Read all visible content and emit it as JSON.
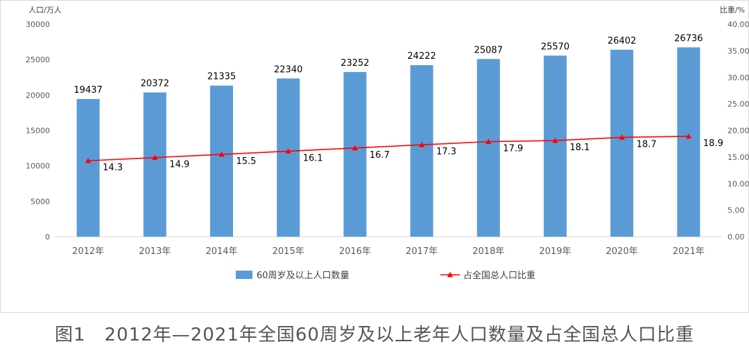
{
  "caption": "图1　2012年—2021年全国60周岁及以上老年人口数量及占全国总人口比重",
  "colors": {
    "bar": "#5b9bd5",
    "line": "#ff0000",
    "axis_text": "#595959",
    "baseline": "#d9d9d9"
  },
  "chart_data": {
    "type": "bar",
    "categories": [
      "2012年",
      "2013年",
      "2014年",
      "2015年",
      "2016年",
      "2017年",
      "2018年",
      "2019年",
      "2020年",
      "2021年"
    ],
    "series": [
      {
        "name": "60周岁及以上人口数量",
        "type": "bar",
        "axis": "left",
        "values": [
          19437,
          20372,
          21335,
          22340,
          23252,
          24222,
          25087,
          25570,
          26402,
          26736
        ],
        "labels": [
          "19437",
          "20372",
          "21335",
          "22340",
          "23252",
          "24222",
          "25087",
          "25570",
          "26402",
          "26736"
        ]
      },
      {
        "name": "占全国总人口比重",
        "type": "line",
        "marker": "triangle",
        "axis": "right",
        "values": [
          14.3,
          14.9,
          15.5,
          16.1,
          16.7,
          17.3,
          17.9,
          18.1,
          18.7,
          18.9
        ],
        "labels": [
          "14.3",
          "14.9",
          "15.5",
          "16.1",
          "16.7",
          "17.3",
          "17.9",
          "18.1",
          "18.7",
          "18.9"
        ]
      }
    ],
    "ylabel_left": "人口/万人",
    "ylabel_right": "比重/%",
    "ylim_left": [
      0,
      30000
    ],
    "ylim_right": [
      0,
      40
    ],
    "yticks_left": [
      "0",
      "5000",
      "10000",
      "15000",
      "20000",
      "25000",
      "30000"
    ],
    "yticks_right": [
      "0.00",
      "5.00",
      "10.00",
      "15.00",
      "20.00",
      "25.00",
      "30.00",
      "35.00",
      "40.00"
    ],
    "grid": false,
    "legend_position": "bottom"
  }
}
